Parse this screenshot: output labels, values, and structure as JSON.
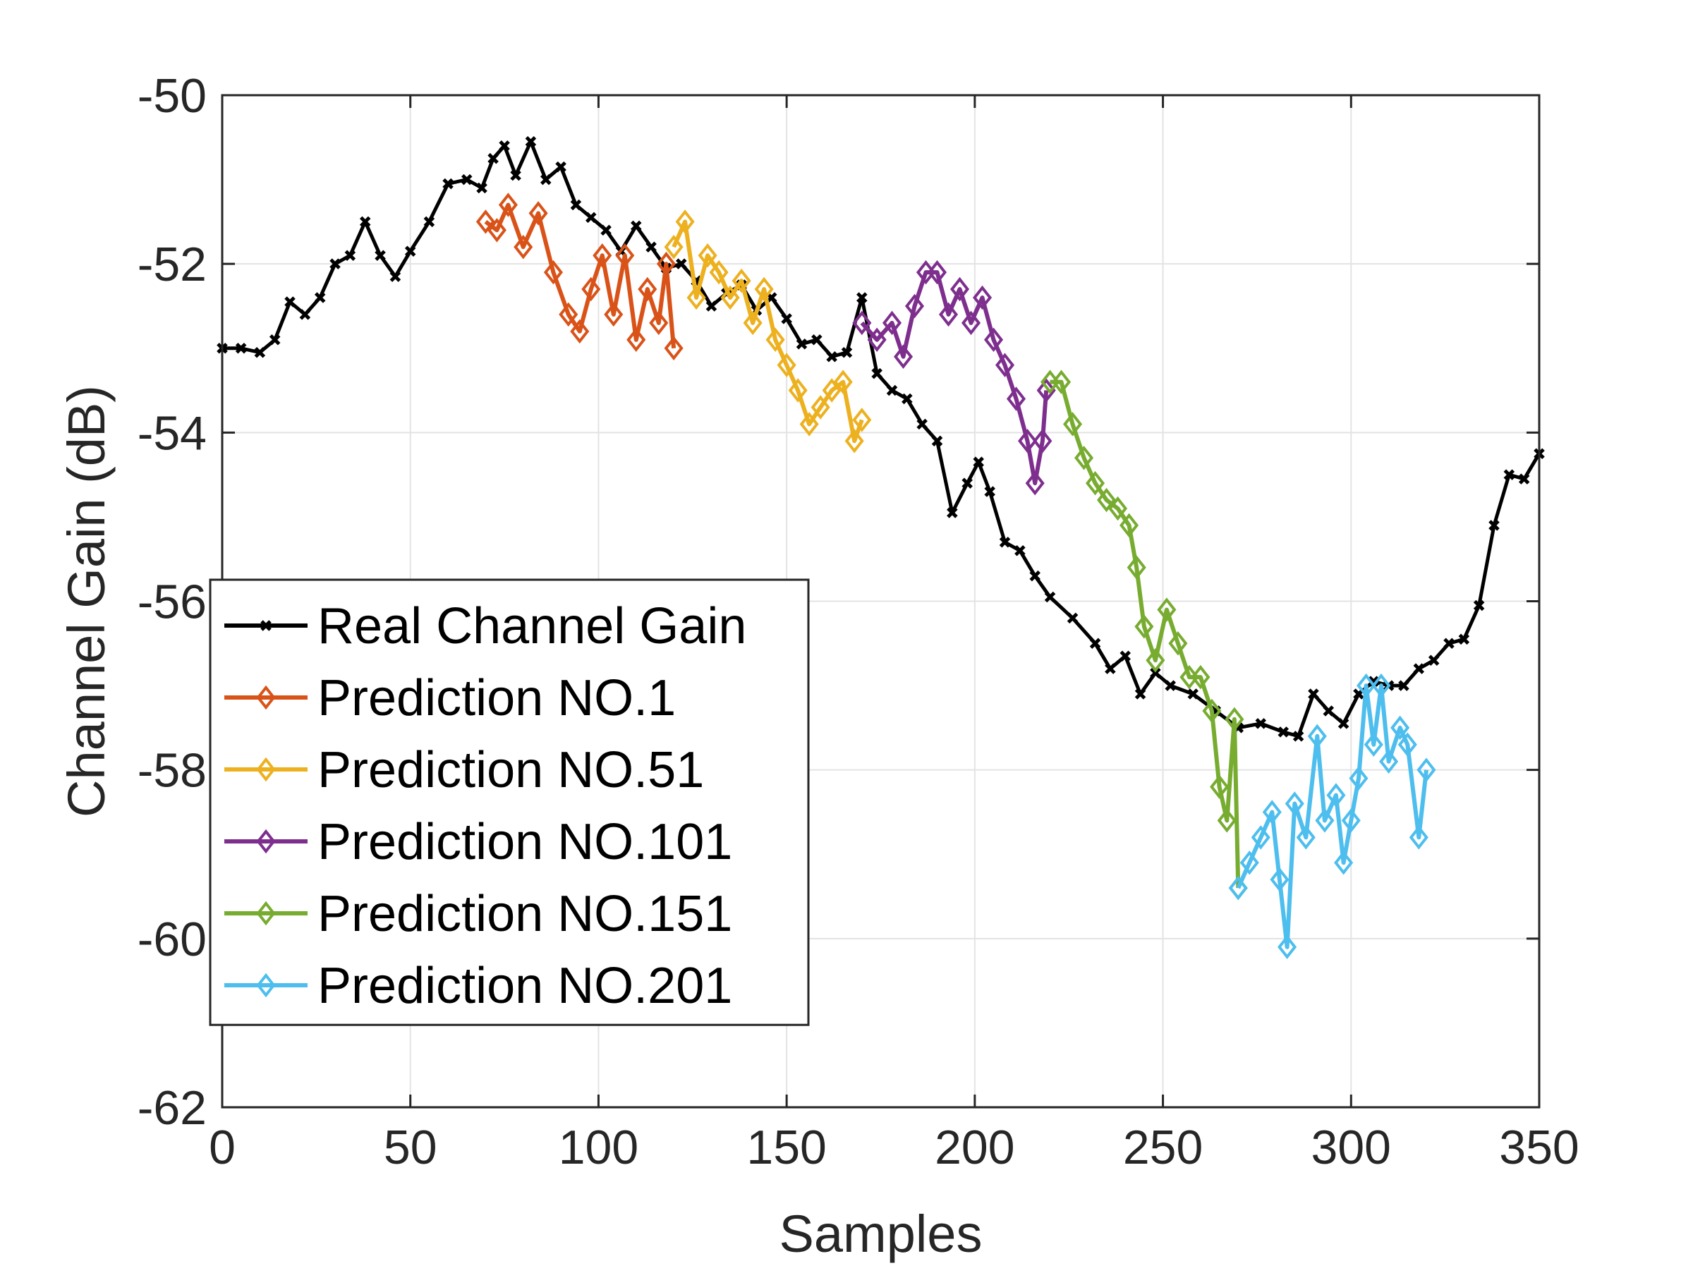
{
  "chart_data": {
    "type": "line",
    "title": "",
    "xlabel": "Samples",
    "ylabel": "Channel Gain (dB)",
    "xlim": [
      0,
      350
    ],
    "ylim": [
      -62,
      -50
    ],
    "xticks": [
      0,
      50,
      100,
      150,
      200,
      250,
      300,
      350
    ],
    "yticks": [
      -62,
      -60,
      -58,
      -56,
      -54,
      -52,
      -50
    ],
    "grid": true,
    "legend_position": "bottom-left",
    "series": [
      {
        "name": "Real Channel Gain",
        "color": "#000000",
        "marker": "x",
        "points": [
          [
            0,
            -53.0
          ],
          [
            5,
            -53.0
          ],
          [
            10,
            -53.05
          ],
          [
            14,
            -52.9
          ],
          [
            18,
            -52.45
          ],
          [
            22,
            -52.6
          ],
          [
            26,
            -52.4
          ],
          [
            30,
            -52.0
          ],
          [
            34,
            -51.9
          ],
          [
            38,
            -51.5
          ],
          [
            42,
            -51.9
          ],
          [
            46,
            -52.15
          ],
          [
            50,
            -51.85
          ],
          [
            55,
            -51.5
          ],
          [
            60,
            -51.05
          ],
          [
            65,
            -51.0
          ],
          [
            69,
            -51.1
          ],
          [
            72,
            -50.75
          ],
          [
            75,
            -50.6
          ],
          [
            78,
            -50.95
          ],
          [
            82,
            -50.55
          ],
          [
            86,
            -51.0
          ],
          [
            90,
            -50.85
          ],
          [
            94,
            -51.3
          ],
          [
            98,
            -51.45
          ],
          [
            102,
            -51.6
          ],
          [
            106,
            -51.85
          ],
          [
            110,
            -51.55
          ],
          [
            114,
            -51.8
          ],
          [
            118,
            -52.05
          ],
          [
            122,
            -52.0
          ],
          [
            126,
            -52.2
          ],
          [
            130,
            -52.5
          ],
          [
            134,
            -52.35
          ],
          [
            138,
            -52.25
          ],
          [
            142,
            -52.55
          ],
          [
            146,
            -52.4
          ],
          [
            150,
            -52.65
          ],
          [
            154,
            -52.95
          ],
          [
            158,
            -52.9
          ],
          [
            162,
            -53.1
          ],
          [
            166,
            -53.05
          ],
          [
            170,
            -52.4
          ],
          [
            174,
            -53.3
          ],
          [
            178,
            -53.5
          ],
          [
            182,
            -53.6
          ],
          [
            186,
            -53.9
          ],
          [
            190,
            -54.1
          ],
          [
            194,
            -54.95
          ],
          [
            198,
            -54.6
          ],
          [
            201,
            -54.35
          ],
          [
            204,
            -54.7
          ],
          [
            208,
            -55.3
          ],
          [
            212,
            -55.4
          ],
          [
            216,
            -55.7
          ],
          [
            220,
            -55.95
          ],
          [
            226,
            -56.2
          ],
          [
            232,
            -56.5
          ],
          [
            236,
            -56.8
          ],
          [
            240,
            -56.65
          ],
          [
            244,
            -57.1
          ],
          [
            248,
            -56.85
          ],
          [
            252,
            -57.0
          ],
          [
            258,
            -57.1
          ],
          [
            264,
            -57.3
          ],
          [
            270,
            -57.5
          ],
          [
            276,
            -57.45
          ],
          [
            282,
            -57.55
          ],
          [
            286,
            -57.6
          ],
          [
            290,
            -57.1
          ],
          [
            294,
            -57.3
          ],
          [
            298,
            -57.45
          ],
          [
            302,
            -57.1
          ],
          [
            306,
            -56.95
          ],
          [
            310,
            -57.0
          ],
          [
            314,
            -57.0
          ],
          [
            318,
            -56.8
          ],
          [
            322,
            -56.7
          ],
          [
            326,
            -56.5
          ],
          [
            330,
            -56.45
          ],
          [
            334,
            -56.05
          ],
          [
            338,
            -55.1
          ],
          [
            342,
            -54.5
          ],
          [
            346,
            -54.55
          ],
          [
            350,
            -54.25
          ]
        ]
      },
      {
        "name": "Prediction NO.1",
        "color": "#d95319",
        "marker": "diamond",
        "points": [
          [
            70,
            -51.5
          ],
          [
            73,
            -51.6
          ],
          [
            76,
            -51.3
          ],
          [
            80,
            -51.8
          ],
          [
            84,
            -51.4
          ],
          [
            88,
            -52.1
          ],
          [
            92,
            -52.6
          ],
          [
            95,
            -52.8
          ],
          [
            98,
            -52.3
          ],
          [
            101,
            -51.9
          ],
          [
            104,
            -52.6
          ],
          [
            107,
            -51.9
          ],
          [
            110,
            -52.9
          ],
          [
            113,
            -52.3
          ],
          [
            116,
            -52.7
          ],
          [
            118,
            -52.0
          ],
          [
            120,
            -53.0
          ]
        ]
      },
      {
        "name": "Prediction NO.51",
        "color": "#edb120",
        "marker": "diamond",
        "points": [
          [
            120,
            -51.8
          ],
          [
            123,
            -51.5
          ],
          [
            126,
            -52.4
          ],
          [
            129,
            -51.9
          ],
          [
            132,
            -52.1
          ],
          [
            135,
            -52.4
          ],
          [
            138,
            -52.2
          ],
          [
            141,
            -52.7
          ],
          [
            144,
            -52.3
          ],
          [
            147,
            -52.9
          ],
          [
            150,
            -53.2
          ],
          [
            153,
            -53.5
          ],
          [
            156,
            -53.9
          ],
          [
            159,
            -53.7
          ],
          [
            162,
            -53.5
          ],
          [
            165,
            -53.4
          ],
          [
            168,
            -54.1
          ],
          [
            170,
            -53.85
          ]
        ]
      },
      {
        "name": "Prediction NO.101",
        "color": "#7e2f8e",
        "marker": "diamond",
        "points": [
          [
            170,
            -52.7
          ],
          [
            174,
            -52.9
          ],
          [
            178,
            -52.7
          ],
          [
            181,
            -53.1
          ],
          [
            184,
            -52.5
          ],
          [
            187,
            -52.1
          ],
          [
            190,
            -52.1
          ],
          [
            193,
            -52.6
          ],
          [
            196,
            -52.3
          ],
          [
            199,
            -52.7
          ],
          [
            202,
            -52.4
          ],
          [
            205,
            -52.9
          ],
          [
            208,
            -53.2
          ],
          [
            211,
            -53.6
          ],
          [
            214,
            -54.1
          ],
          [
            216,
            -54.6
          ],
          [
            218,
            -54.1
          ],
          [
            219,
            -53.5
          ]
        ]
      },
      {
        "name": "Prediction NO.151",
        "color": "#77ac30",
        "marker": "diamond",
        "points": [
          [
            220,
            -53.4
          ],
          [
            223,
            -53.4
          ],
          [
            226,
            -53.9
          ],
          [
            229,
            -54.3
          ],
          [
            232,
            -54.6
          ],
          [
            235,
            -54.8
          ],
          [
            238,
            -54.9
          ],
          [
            241,
            -55.1
          ],
          [
            243,
            -55.6
          ],
          [
            245,
            -56.3
          ],
          [
            248,
            -56.7
          ],
          [
            251,
            -56.1
          ],
          [
            254,
            -56.5
          ],
          [
            257,
            -56.9
          ],
          [
            260,
            -56.9
          ],
          [
            263,
            -57.3
          ],
          [
            265,
            -58.2
          ],
          [
            267,
            -58.6
          ],
          [
            269,
            -57.4
          ],
          [
            270,
            -59.4
          ]
        ]
      },
      {
        "name": "Prediction NO.201",
        "color": "#4dbeee",
        "marker": "diamond",
        "points": [
          [
            270,
            -59.4
          ],
          [
            273,
            -59.1
          ],
          [
            276,
            -58.8
          ],
          [
            279,
            -58.5
          ],
          [
            281,
            -59.3
          ],
          [
            283,
            -60.1
          ],
          [
            285,
            -58.4
          ],
          [
            288,
            -58.8
          ],
          [
            291,
            -57.6
          ],
          [
            293,
            -58.6
          ],
          [
            296,
            -58.3
          ],
          [
            298,
            -59.1
          ],
          [
            300,
            -58.6
          ],
          [
            302,
            -58.1
          ],
          [
            304,
            -57.0
          ],
          [
            306,
            -57.7
          ],
          [
            308,
            -57.0
          ],
          [
            310,
            -57.9
          ],
          [
            313,
            -57.5
          ],
          [
            315,
            -57.7
          ],
          [
            318,
            -58.8
          ],
          [
            320,
            -58.0
          ]
        ]
      }
    ]
  }
}
